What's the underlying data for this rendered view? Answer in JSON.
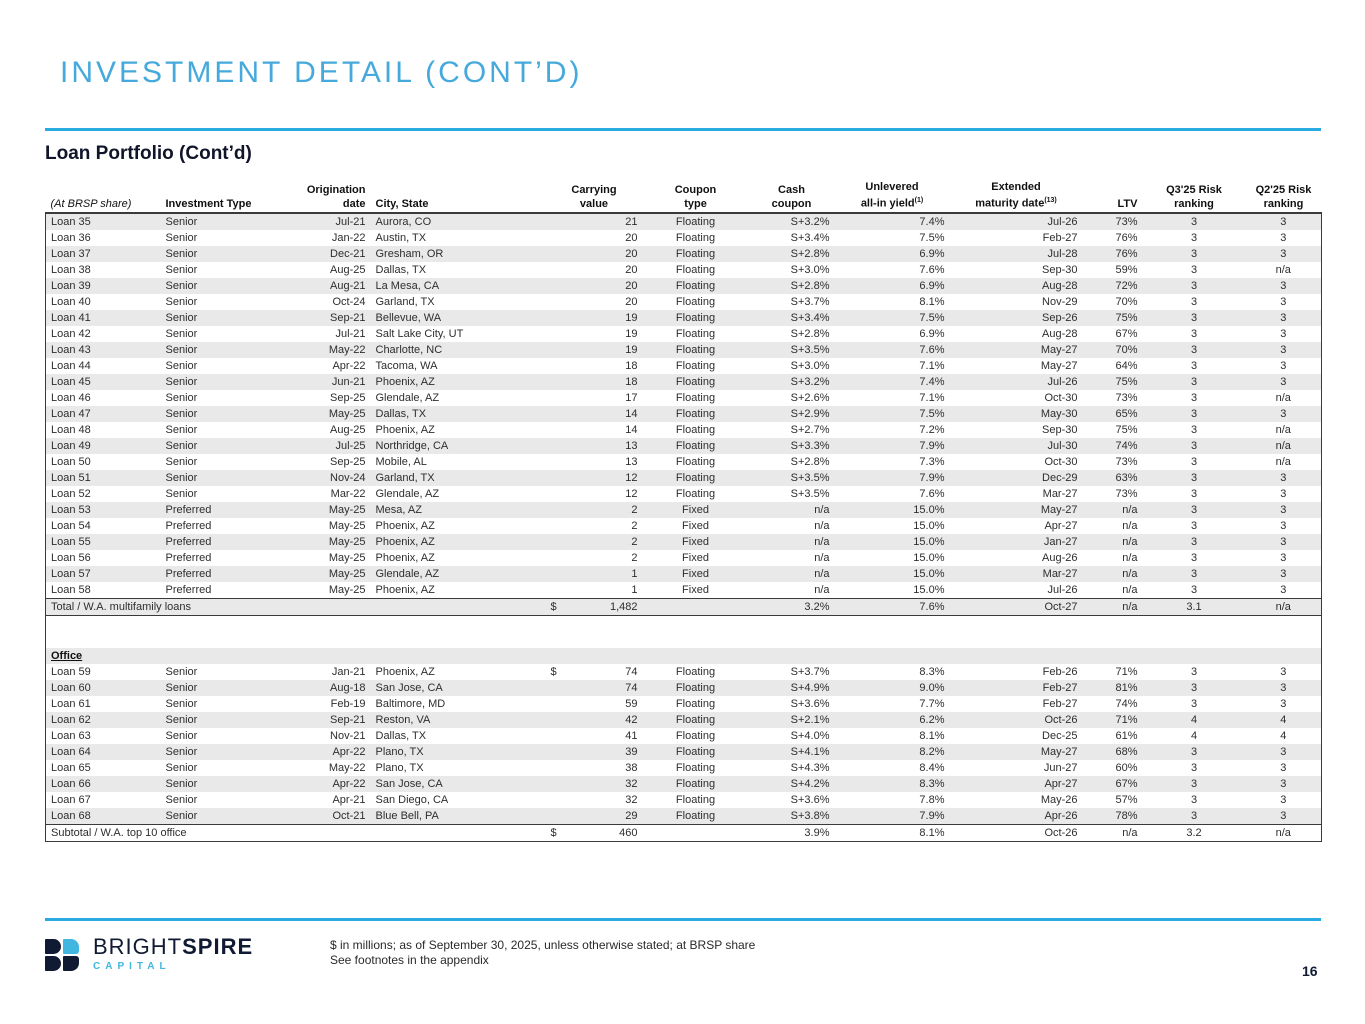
{
  "page": {
    "title": "INVESTMENT DETAIL (CONT’D)",
    "section_title": "Loan Portfolio (Cont’d)",
    "page_number": "16"
  },
  "colors": {
    "accent_rule_blue": "#29abe2",
    "title_blue": "#45a9db",
    "brand_navy": "#101a33",
    "brand_light_blue": "#41b6e1",
    "row_stripe_gray": "#e9e9e9"
  },
  "table": {
    "corner_label": "(At BRSP share)",
    "headers": [
      {
        "line1": "",
        "line2": "Investment Type"
      },
      {
        "line1": "Origination",
        "line2": "date"
      },
      {
        "line1": "",
        "line2": "City, State"
      },
      {
        "line1": "Carrying",
        "line2": "value"
      },
      {
        "line1": "Coupon",
        "line2": "type"
      },
      {
        "line1": "Cash",
        "line2": "coupon"
      },
      {
        "line1": "Unlevered",
        "line2": "all-in yield",
        "sup": "(1)"
      },
      {
        "line1": "Extended",
        "line2": "maturity date",
        "sup": "(13)"
      },
      {
        "line1": "",
        "line2": "LTV"
      },
      {
        "line1": "Q3'25 Risk",
        "line2": "ranking"
      },
      {
        "line1": "Q2'25 Risk",
        "line2": "ranking"
      }
    ],
    "multifamily_rows": [
      [
        "Loan 35",
        "Senior",
        "Jul-21",
        "Aurora, CO",
        "",
        "21",
        "Floating",
        "S+3.2%",
        "7.4%",
        "Jul-26",
        "73%",
        "3",
        "3"
      ],
      [
        "Loan 36",
        "Senior",
        "Jan-22",
        "Austin, TX",
        "",
        "20",
        "Floating",
        "S+3.4%",
        "7.5%",
        "Feb-27",
        "76%",
        "3",
        "3"
      ],
      [
        "Loan 37",
        "Senior",
        "Dec-21",
        "Gresham, OR",
        "",
        "20",
        "Floating",
        "S+2.8%",
        "6.9%",
        "Jul-28",
        "76%",
        "3",
        "3"
      ],
      [
        "Loan 38",
        "Senior",
        "Aug-25",
        "Dallas, TX",
        "",
        "20",
        "Floating",
        "S+3.0%",
        "7.6%",
        "Sep-30",
        "59%",
        "3",
        "n/a"
      ],
      [
        "Loan 39",
        "Senior",
        "Aug-21",
        "La Mesa, CA",
        "",
        "20",
        "Floating",
        "S+2.8%",
        "6.9%",
        "Aug-28",
        "72%",
        "3",
        "3"
      ],
      [
        "Loan 40",
        "Senior",
        "Oct-24",
        "Garland, TX",
        "",
        "20",
        "Floating",
        "S+3.7%",
        "8.1%",
        "Nov-29",
        "70%",
        "3",
        "3"
      ],
      [
        "Loan 41",
        "Senior",
        "Sep-21",
        "Bellevue, WA",
        "",
        "19",
        "Floating",
        "S+3.4%",
        "7.5%",
        "Sep-26",
        "75%",
        "3",
        "3"
      ],
      [
        "Loan 42",
        "Senior",
        "Jul-21",
        "Salt Lake City, UT",
        "",
        "19",
        "Floating",
        "S+2.8%",
        "6.9%",
        "Aug-28",
        "67%",
        "3",
        "3"
      ],
      [
        "Loan 43",
        "Senior",
        "May-22",
        "Charlotte, NC",
        "",
        "19",
        "Floating",
        "S+3.5%",
        "7.6%",
        "May-27",
        "70%",
        "3",
        "3"
      ],
      [
        "Loan 44",
        "Senior",
        "Apr-22",
        "Tacoma, WA",
        "",
        "18",
        "Floating",
        "S+3.0%",
        "7.1%",
        "May-27",
        "64%",
        "3",
        "3"
      ],
      [
        "Loan 45",
        "Senior",
        "Jun-21",
        "Phoenix, AZ",
        "",
        "18",
        "Floating",
        "S+3.2%",
        "7.4%",
        "Jul-26",
        "75%",
        "3",
        "3"
      ],
      [
        "Loan 46",
        "Senior",
        "Sep-25",
        "Glendale, AZ",
        "",
        "17",
        "Floating",
        "S+2.6%",
        "7.1%",
        "Oct-30",
        "73%",
        "3",
        "n/a"
      ],
      [
        "Loan 47",
        "Senior",
        "May-25",
        "Dallas, TX",
        "",
        "14",
        "Floating",
        "S+2.9%",
        "7.5%",
        "May-30",
        "65%",
        "3",
        "3"
      ],
      [
        "Loan 48",
        "Senior",
        "Aug-25",
        "Phoenix, AZ",
        "",
        "14",
        "Floating",
        "S+2.7%",
        "7.2%",
        "Sep-30",
        "75%",
        "3",
        "n/a"
      ],
      [
        "Loan 49",
        "Senior",
        "Jul-25",
        "Northridge, CA",
        "",
        "13",
        "Floating",
        "S+3.3%",
        "7.9%",
        "Jul-30",
        "74%",
        "3",
        "n/a"
      ],
      [
        "Loan 50",
        "Senior",
        "Sep-25",
        "Mobile, AL",
        "",
        "13",
        "Floating",
        "S+2.8%",
        "7.3%",
        "Oct-30",
        "73%",
        "3",
        "n/a"
      ],
      [
        "Loan 51",
        "Senior",
        "Nov-24",
        "Garland, TX",
        "",
        "12",
        "Floating",
        "S+3.5%",
        "7.9%",
        "Dec-29",
        "63%",
        "3",
        "3"
      ],
      [
        "Loan 52",
        "Senior",
        "Mar-22",
        "Glendale, AZ",
        "",
        "12",
        "Floating",
        "S+3.5%",
        "7.6%",
        "Mar-27",
        "73%",
        "3",
        "3"
      ],
      [
        "Loan 53",
        "Preferred",
        "May-25",
        "Mesa, AZ",
        "",
        "2",
        "Fixed",
        "n/a",
        "15.0%",
        "May-27",
        "n/a",
        "3",
        "3"
      ],
      [
        "Loan 54",
        "Preferred",
        "May-25",
        "Phoenix, AZ",
        "",
        "2",
        "Fixed",
        "n/a",
        "15.0%",
        "Apr-27",
        "n/a",
        "3",
        "3"
      ],
      [
        "Loan 55",
        "Preferred",
        "May-25",
        "Phoenix, AZ",
        "",
        "2",
        "Fixed",
        "n/a",
        "15.0%",
        "Jan-27",
        "n/a",
        "3",
        "3"
      ],
      [
        "Loan 56",
        "Preferred",
        "May-25",
        "Phoenix, AZ",
        "",
        "2",
        "Fixed",
        "n/a",
        "15.0%",
        "Aug-26",
        "n/a",
        "3",
        "3"
      ],
      [
        "Loan 57",
        "Preferred",
        "May-25",
        "Glendale, AZ",
        "",
        "1",
        "Fixed",
        "n/a",
        "15.0%",
        "Mar-27",
        "n/a",
        "3",
        "3"
      ],
      [
        "Loan 58",
        "Preferred",
        "May-25",
        "Phoenix, AZ",
        "",
        "1",
        "Fixed",
        "n/a",
        "15.0%",
        "Jul-26",
        "n/a",
        "3",
        "3"
      ]
    ],
    "multifamily_total": {
      "label": "Total / W.A. multifamily loans",
      "dollar": "$",
      "value": "1,482",
      "coupon_type": "",
      "cash_coupon": "3.2%",
      "yield": "7.6%",
      "maturity": "Oct-27",
      "ltv": "n/a",
      "q3_rank": "3.1",
      "q2_rank": "n/a"
    },
    "office_section_label": "Office",
    "office_rows": [
      [
        "Loan 59",
        "Senior",
        "Jan-21",
        "Phoenix, AZ",
        "$",
        "74",
        "Floating",
        "S+3.7%",
        "8.3%",
        "Feb-26",
        "71%",
        "3",
        "3"
      ],
      [
        "Loan 60",
        "Senior",
        "Aug-18",
        "San Jose, CA",
        "",
        "74",
        "Floating",
        "S+4.9%",
        "9.0%",
        "Feb-27",
        "81%",
        "3",
        "3"
      ],
      [
        "Loan 61",
        "Senior",
        "Feb-19",
        "Baltimore, MD",
        "",
        "59",
        "Floating",
        "S+3.6%",
        "7.7%",
        "Feb-27",
        "74%",
        "3",
        "3"
      ],
      [
        "Loan 62",
        "Senior",
        "Sep-21",
        "Reston, VA",
        "",
        "42",
        "Floating",
        "S+2.1%",
        "6.2%",
        "Oct-26",
        "71%",
        "4",
        "4"
      ],
      [
        "Loan 63",
        "Senior",
        "Nov-21",
        "Dallas, TX",
        "",
        "41",
        "Floating",
        "S+4.0%",
        "8.1%",
        "Dec-25",
        "61%",
        "4",
        "4"
      ],
      [
        "Loan 64",
        "Senior",
        "Apr-22",
        "Plano, TX",
        "",
        "39",
        "Floating",
        "S+4.1%",
        "8.2%",
        "May-27",
        "68%",
        "3",
        "3"
      ],
      [
        "Loan 65",
        "Senior",
        "May-22",
        "Plano, TX",
        "",
        "38",
        "Floating",
        "S+4.3%",
        "8.4%",
        "Jun-27",
        "60%",
        "3",
        "3"
      ],
      [
        "Loan 66",
        "Senior",
        "Apr-22",
        "San Jose, CA",
        "",
        "32",
        "Floating",
        "S+4.2%",
        "8.3%",
        "Apr-27",
        "67%",
        "3",
        "3"
      ],
      [
        "Loan 67",
        "Senior",
        "Apr-21",
        "San Diego, CA",
        "",
        "32",
        "Floating",
        "S+3.6%",
        "7.8%",
        "May-26",
        "57%",
        "3",
        "3"
      ],
      [
        "Loan 68",
        "Senior",
        "Oct-21",
        "Blue Bell, PA",
        "",
        "29",
        "Floating",
        "S+3.8%",
        "7.9%",
        "Apr-26",
        "78%",
        "3",
        "3"
      ]
    ],
    "office_subtotal": {
      "label": "Subtotal / W.A. top 10 office",
      "dollar": "$",
      "value": "460",
      "coupon_type": "",
      "cash_coupon": "3.9%",
      "yield": "8.1%",
      "maturity": "Oct-26",
      "ltv": "n/a",
      "q3_rank": "3.2",
      "q2_rank": "n/a"
    }
  },
  "footer": {
    "logo": {
      "name_part1": "BRIGHT",
      "name_part2": "SPIRE",
      "subtitle": "CAPITAL"
    },
    "note_line1": "$ in millions; as of September 30, 2025, unless otherwise stated; at BRSP share",
    "note_line2": "See footnotes in the appendix"
  }
}
